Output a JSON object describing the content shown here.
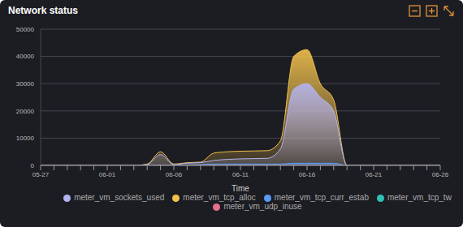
{
  "chart_data": {
    "type": "area",
    "title": "Network status",
    "x_label": "Time",
    "categories": [
      "05-27",
      null,
      null,
      null,
      null,
      "06-01",
      null,
      null,
      null,
      null,
      "06-06",
      null,
      null,
      null,
      null,
      "06-11",
      null,
      null,
      null,
      null,
      "06-16",
      null,
      null,
      null,
      null,
      "06-21",
      null,
      null,
      null,
      null,
      "06-26"
    ],
    "series": [
      {
        "name": "meter_vm_tcp_alloc",
        "color": "#f2c14e",
        "values": [
          0,
          0,
          0,
          0,
          0,
          0,
          0,
          0,
          500,
          5000,
          500,
          1000,
          1200,
          4500,
          5000,
          5200,
          5300,
          5400,
          9000,
          40000,
          42500,
          30000,
          24000,
          0,
          0,
          0,
          0,
          0,
          0,
          0,
          0
        ]
      },
      {
        "name": "meter_vm_sockets_used",
        "color": "#b3b3ef",
        "values": [
          0,
          0,
          0,
          0,
          0,
          0,
          0,
          0,
          300,
          4000,
          300,
          800,
          1000,
          1800,
          2200,
          2400,
          2500,
          2600,
          6000,
          28000,
          30000,
          25000,
          20000,
          0,
          0,
          0,
          0,
          0,
          0,
          0,
          0
        ]
      },
      {
        "name": "meter_vm_tcp_curr_estab",
        "color": "#5b9cf6",
        "values": [
          0,
          0,
          0,
          0,
          0,
          0,
          0,
          0,
          0,
          200,
          0,
          200,
          300,
          500,
          500,
          500,
          500,
          500,
          500,
          800,
          800,
          800,
          800,
          0,
          0,
          0,
          0,
          0,
          0,
          0,
          0
        ]
      },
      {
        "name": "meter_vm_tcp_tw",
        "color": "#2ec4b6",
        "values": [
          0,
          0,
          0,
          0,
          0,
          0,
          0,
          0,
          0,
          0,
          0,
          0,
          0,
          0,
          0,
          0,
          0,
          0,
          0,
          0,
          0,
          0,
          0,
          0,
          0,
          0,
          0,
          0,
          0,
          0,
          0
        ]
      },
      {
        "name": "meter_vm_udp_inuse",
        "color": "#e8708c",
        "values": [
          0,
          0,
          0,
          0,
          0,
          0,
          0,
          0,
          0,
          0,
          0,
          0,
          0,
          0,
          0,
          0,
          0,
          0,
          0,
          0,
          0,
          0,
          0,
          0,
          0,
          0,
          0,
          0,
          0,
          0,
          0
        ]
      }
    ],
    "ylim": [
      0,
      50000
    ],
    "yticks": [
      0,
      10000,
      20000,
      30000,
      40000,
      50000
    ],
    "grid": true,
    "legend": "bottom"
  }
}
